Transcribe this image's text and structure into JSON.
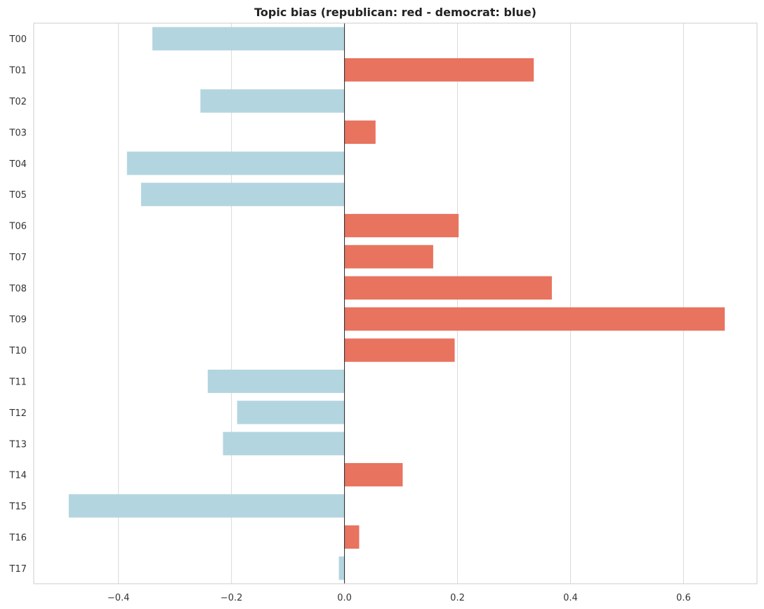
{
  "chart_data": {
    "type": "bar",
    "orientation": "horizontal",
    "title": "Topic bias (republican: red - democrat: blue)",
    "xlabel": "",
    "ylabel": "",
    "xlim": [
      -0.55,
      0.73
    ],
    "xticks": [
      -0.4,
      -0.2,
      0.0,
      0.2,
      0.4,
      0.6
    ],
    "xtick_labels": [
      "−0.4",
      "−0.2",
      "0.0",
      "0.2",
      "0.4",
      "0.6"
    ],
    "grid": "vertical",
    "categories": [
      "T00",
      "T01",
      "T02",
      "T03",
      "T04",
      "T05",
      "T06",
      "T07",
      "T08",
      "T09",
      "T10",
      "T11",
      "T12",
      "T13",
      "T14",
      "T15",
      "T16",
      "T17"
    ],
    "values": [
      -0.34,
      0.335,
      -0.255,
      0.055,
      -0.385,
      -0.36,
      0.202,
      0.157,
      0.367,
      0.673,
      0.195,
      -0.242,
      -0.19,
      -0.215,
      0.103,
      -0.488,
      0.026,
      -0.01
    ],
    "colors": {
      "positive": "#e8735f",
      "negative": "#b3d5e0",
      "grid": "#d9d9d9",
      "zero_line": "#222222",
      "frame": "#cccccc"
    }
  }
}
